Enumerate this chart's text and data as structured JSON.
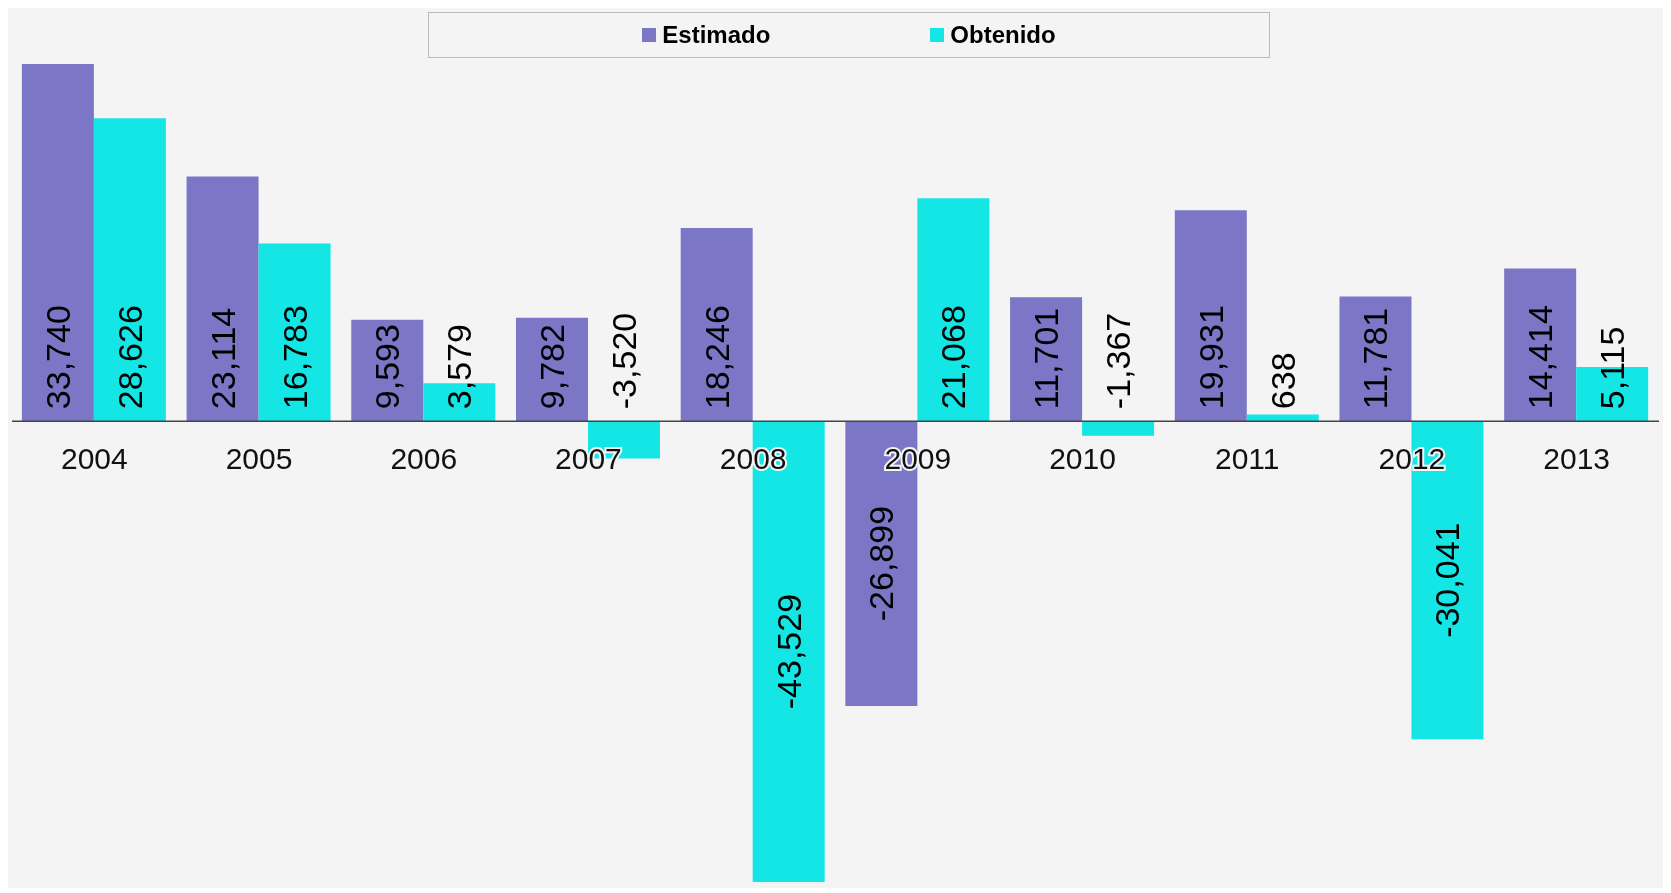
{
  "chart_data": {
    "type": "bar",
    "categories": [
      "2004",
      "2005",
      "2006",
      "2007",
      "2008",
      "2009",
      "2010",
      "2011",
      "2012",
      "2013"
    ],
    "series": [
      {
        "name": "Estimado",
        "color": "#7b76c6",
        "values": [
          33740,
          23114,
          9593,
          9782,
          18246,
          -26899,
          11701,
          19931,
          11781,
          14414
        ],
        "value_labels": [
          "33,740",
          "23,114",
          "9,593",
          "9,782",
          "18,246",
          "-26,899",
          "11,701",
          "19,931",
          "11,781",
          "14,414"
        ]
      },
      {
        "name": "Obtenido",
        "color": "#14e6e6",
        "values": [
          28626,
          16783,
          3579,
          -3520,
          -43529,
          21068,
          -1367,
          638,
          -30041,
          5115
        ],
        "value_labels": [
          "28,626",
          "16,783",
          "3,579",
          "-3,520",
          "-43,529",
          "21,068",
          "-1,367",
          "638",
          "-30,041",
          "5,115"
        ]
      }
    ],
    "legend": "top"
  }
}
